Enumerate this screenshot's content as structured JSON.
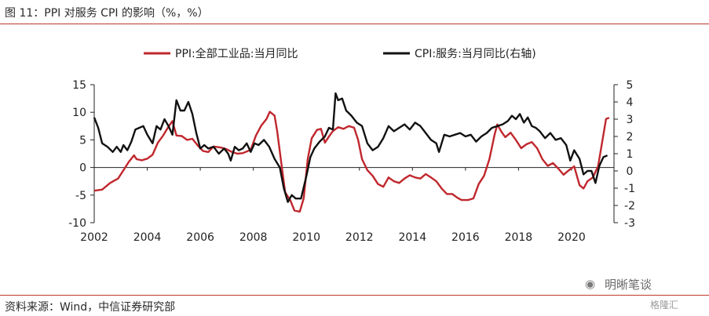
{
  "figure": {
    "title": "图 11：PPI 对服务 CPI 的影响（%，%）",
    "source": "资料来源：Wind，中信证券研究部",
    "watermark": "明晰笔谈",
    "watermark2": "格隆汇"
  },
  "colors": {
    "ppi": "#c0272d",
    "cpi": "#111111",
    "rule": "#c0392b"
  },
  "chart_data": {
    "type": "line",
    "title": "",
    "x_ticks": [
      "2002",
      "2004",
      "2006",
      "2008",
      "2010",
      "2012",
      "2014",
      "2016",
      "2018",
      "2020"
    ],
    "x_range": [
      2002.0,
      2021.6
    ],
    "y_left": {
      "range": [
        -10,
        15
      ],
      "ticks": [
        "15",
        "10",
        "5",
        "0",
        "-5",
        "-10"
      ]
    },
    "y_right": {
      "range": [
        -3,
        5
      ],
      "ticks": [
        "5",
        "4",
        "3",
        "2",
        "1",
        "0",
        "-1",
        "-2",
        "-3"
      ]
    },
    "grid": false,
    "legend_position": "top",
    "series": [
      {
        "name": "PPI:全部工业品:当月同比",
        "axis": "left",
        "points": [
          [
            2002.0,
            -4.2
          ],
          [
            2002.3,
            -4.0
          ],
          [
            2002.6,
            -2.8
          ],
          [
            2002.9,
            -2.0
          ],
          [
            2003.1,
            -0.5
          ],
          [
            2003.3,
            1.0
          ],
          [
            2003.5,
            2.2
          ],
          [
            2003.6,
            1.5
          ],
          [
            2003.8,
            1.3
          ],
          [
            2004.0,
            1.6
          ],
          [
            2004.2,
            2.3
          ],
          [
            2004.4,
            4.5
          ],
          [
            2004.6,
            5.8
          ],
          [
            2004.8,
            7.4
          ],
          [
            2004.95,
            8.4
          ],
          [
            2005.1,
            5.8
          ],
          [
            2005.3,
            5.7
          ],
          [
            2005.5,
            5.0
          ],
          [
            2005.7,
            5.2
          ],
          [
            2005.9,
            4.0
          ],
          [
            2006.1,
            3.0
          ],
          [
            2006.3,
            2.8
          ],
          [
            2006.5,
            3.8
          ],
          [
            2006.8,
            3.6
          ],
          [
            2007.0,
            3.3
          ],
          [
            2007.2,
            2.8
          ],
          [
            2007.4,
            2.5
          ],
          [
            2007.6,
            2.6
          ],
          [
            2007.9,
            3.2
          ],
          [
            2008.1,
            5.8
          ],
          [
            2008.3,
            7.6
          ],
          [
            2008.5,
            8.8
          ],
          [
            2008.62,
            10.1
          ],
          [
            2008.8,
            9.4
          ],
          [
            2008.9,
            6.5
          ],
          [
            2009.05,
            1.0
          ],
          [
            2009.2,
            -4.5
          ],
          [
            2009.4,
            -6.0
          ],
          [
            2009.55,
            -7.8
          ],
          [
            2009.75,
            -8.0
          ],
          [
            2009.9,
            -5.6
          ],
          [
            2010.05,
            1.5
          ],
          [
            2010.2,
            5.3
          ],
          [
            2010.4,
            6.8
          ],
          [
            2010.55,
            7.0
          ],
          [
            2010.7,
            4.5
          ],
          [
            2010.85,
            5.6
          ],
          [
            2011.0,
            6.6
          ],
          [
            2011.2,
            7.3
          ],
          [
            2011.4,
            7.0
          ],
          [
            2011.6,
            7.5
          ],
          [
            2011.8,
            7.2
          ],
          [
            2011.95,
            5.0
          ],
          [
            2012.1,
            1.5
          ],
          [
            2012.3,
            -0.5
          ],
          [
            2012.5,
            -1.5
          ],
          [
            2012.7,
            -3.0
          ],
          [
            2012.9,
            -3.5
          ],
          [
            2013.1,
            -1.8
          ],
          [
            2013.3,
            -2.5
          ],
          [
            2013.5,
            -2.8
          ],
          [
            2013.7,
            -2.0
          ],
          [
            2013.9,
            -1.4
          ],
          [
            2014.1,
            -1.8
          ],
          [
            2014.3,
            -2.0
          ],
          [
            2014.5,
            -1.2
          ],
          [
            2014.7,
            -1.8
          ],
          [
            2014.9,
            -2.5
          ],
          [
            2015.1,
            -3.8
          ],
          [
            2015.3,
            -4.8
          ],
          [
            2015.5,
            -4.8
          ],
          [
            2015.7,
            -5.5
          ],
          [
            2015.85,
            -5.9
          ],
          [
            2016.1,
            -5.9
          ],
          [
            2016.3,
            -5.6
          ],
          [
            2016.5,
            -3.0
          ],
          [
            2016.7,
            -1.5
          ],
          [
            2016.9,
            1.5
          ],
          [
            2017.1,
            6.0
          ],
          [
            2017.2,
            7.8
          ],
          [
            2017.35,
            6.5
          ],
          [
            2017.5,
            5.5
          ],
          [
            2017.7,
            6.3
          ],
          [
            2017.9,
            5.0
          ],
          [
            2018.1,
            3.5
          ],
          [
            2018.3,
            4.2
          ],
          [
            2018.5,
            4.6
          ],
          [
            2018.7,
            3.5
          ],
          [
            2018.9,
            1.5
          ],
          [
            2019.1,
            0.3
          ],
          [
            2019.3,
            0.8
          ],
          [
            2019.5,
            -0.2
          ],
          [
            2019.7,
            -1.3
          ],
          [
            2019.9,
            -0.5
          ],
          [
            2020.1,
            0.2
          ],
          [
            2020.3,
            -3.2
          ],
          [
            2020.45,
            -3.8
          ],
          [
            2020.6,
            -2.5
          ],
          [
            2020.8,
            -1.8
          ],
          [
            2021.0,
            0.2
          ],
          [
            2021.15,
            4.5
          ],
          [
            2021.3,
            8.8
          ],
          [
            2021.42,
            9.0
          ]
        ]
      },
      {
        "name": "CPI:服务:当月同比(右轴)",
        "axis": "right",
        "points": [
          [
            2002.0,
            3.1
          ],
          [
            2002.15,
            2.5
          ],
          [
            2002.3,
            1.6
          ],
          [
            2002.5,
            1.4
          ],
          [
            2002.7,
            1.1
          ],
          [
            2002.85,
            1.4
          ],
          [
            2003.0,
            1.1
          ],
          [
            2003.1,
            1.5
          ],
          [
            2003.25,
            1.2
          ],
          [
            2003.4,
            1.7
          ],
          [
            2003.55,
            2.4
          ],
          [
            2003.7,
            2.5
          ],
          [
            2003.85,
            2.6
          ],
          [
            2004.0,
            2.1
          ],
          [
            2004.2,
            1.6
          ],
          [
            2004.35,
            2.6
          ],
          [
            2004.5,
            2.4
          ],
          [
            2004.65,
            3.0
          ],
          [
            2004.8,
            2.6
          ],
          [
            2004.95,
            2.1
          ],
          [
            2005.1,
            4.1
          ],
          [
            2005.25,
            3.5
          ],
          [
            2005.4,
            3.5
          ],
          [
            2005.55,
            4.0
          ],
          [
            2005.7,
            3.3
          ],
          [
            2005.85,
            2.2
          ],
          [
            2006.0,
            1.3
          ],
          [
            2006.15,
            1.5
          ],
          [
            2006.3,
            1.3
          ],
          [
            2006.5,
            1.4
          ],
          [
            2006.7,
            1.0
          ],
          [
            2006.9,
            1.3
          ],
          [
            2007.05,
            1.0
          ],
          [
            2007.15,
            0.6
          ],
          [
            2007.3,
            1.4
          ],
          [
            2007.45,
            1.2
          ],
          [
            2007.6,
            1.3
          ],
          [
            2007.75,
            1.6
          ],
          [
            2007.9,
            1.1
          ],
          [
            2008.05,
            1.6
          ],
          [
            2008.2,
            1.5
          ],
          [
            2008.4,
            1.8
          ],
          [
            2008.6,
            1.4
          ],
          [
            2008.8,
            0.7
          ],
          [
            2009.0,
            0.2
          ],
          [
            2009.15,
            -1.0
          ],
          [
            2009.3,
            -1.8
          ],
          [
            2009.45,
            -1.4
          ],
          [
            2009.6,
            -1.6
          ],
          [
            2009.8,
            -1.6
          ],
          [
            2010.0,
            -0.3
          ],
          [
            2010.15,
            0.8
          ],
          [
            2010.3,
            1.3
          ],
          [
            2010.5,
            1.7
          ],
          [
            2010.7,
            2.0
          ],
          [
            2010.85,
            2.5
          ],
          [
            2011.0,
            2.4
          ],
          [
            2011.1,
            4.5
          ],
          [
            2011.2,
            4.1
          ],
          [
            2011.35,
            4.2
          ],
          [
            2011.5,
            3.5
          ],
          [
            2011.7,
            3.2
          ],
          [
            2011.9,
            2.8
          ],
          [
            2012.1,
            2.6
          ],
          [
            2012.3,
            1.6
          ],
          [
            2012.5,
            1.2
          ],
          [
            2012.7,
            1.4
          ],
          [
            2012.9,
            1.9
          ],
          [
            2013.1,
            2.6
          ],
          [
            2013.3,
            2.3
          ],
          [
            2013.5,
            2.5
          ],
          [
            2013.7,
            2.7
          ],
          [
            2013.9,
            2.4
          ],
          [
            2014.1,
            2.8
          ],
          [
            2014.3,
            2.6
          ],
          [
            2014.5,
            2.2
          ],
          [
            2014.7,
            1.8
          ],
          [
            2014.9,
            1.6
          ],
          [
            2015.0,
            1.1
          ],
          [
            2015.2,
            2.1
          ],
          [
            2015.4,
            2.0
          ],
          [
            2015.6,
            2.1
          ],
          [
            2015.8,
            2.2
          ],
          [
            2016.0,
            2.0
          ],
          [
            2016.2,
            2.1
          ],
          [
            2016.4,
            1.7
          ],
          [
            2016.6,
            2.0
          ],
          [
            2016.8,
            2.2
          ],
          [
            2017.0,
            2.5
          ],
          [
            2017.2,
            2.6
          ],
          [
            2017.4,
            2.7
          ],
          [
            2017.6,
            2.9
          ],
          [
            2017.75,
            3.2
          ],
          [
            2017.9,
            3.0
          ],
          [
            2018.05,
            3.3
          ],
          [
            2018.2,
            2.8
          ],
          [
            2018.35,
            3.1
          ],
          [
            2018.5,
            2.6
          ],
          [
            2018.65,
            2.5
          ],
          [
            2018.8,
            2.3
          ],
          [
            2019.0,
            1.9
          ],
          [
            2019.2,
            2.2
          ],
          [
            2019.4,
            1.8
          ],
          [
            2019.6,
            1.9
          ],
          [
            2019.8,
            1.5
          ],
          [
            2019.95,
            0.6
          ],
          [
            2020.1,
            1.2
          ],
          [
            2020.3,
            0.7
          ],
          [
            2020.45,
            -0.2
          ],
          [
            2020.6,
            0.0
          ],
          [
            2020.75,
            0.0
          ],
          [
            2020.9,
            -0.7
          ],
          [
            2021.05,
            0.3
          ],
          [
            2021.2,
            0.8
          ],
          [
            2021.35,
            0.9
          ]
        ]
      }
    ]
  }
}
